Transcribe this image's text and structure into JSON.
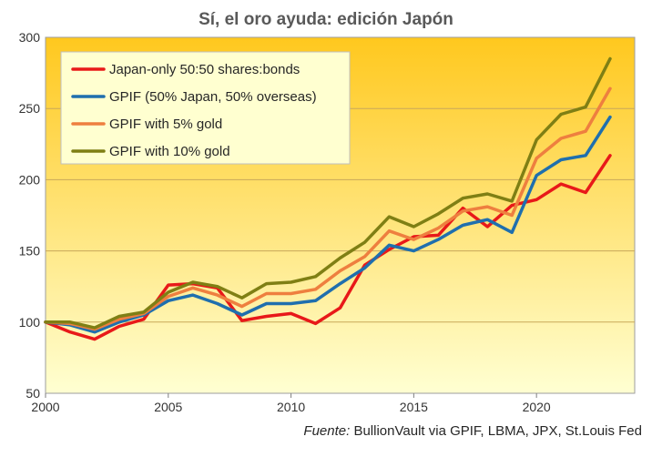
{
  "chart_data": {
    "type": "line",
    "title": "Sí, el oro ayuda: edición Japón",
    "xlabel": "",
    "ylabel": "",
    "xlim": [
      2000,
      2024
    ],
    "ylim": [
      50,
      300
    ],
    "x_ticks": [
      2000,
      2005,
      2010,
      2015,
      2020
    ],
    "y_ticks": [
      50,
      100,
      150,
      200,
      250,
      300
    ],
    "x": [
      2000,
      2001,
      2002,
      2003,
      2004,
      2005,
      2006,
      2007,
      2008,
      2009,
      2010,
      2011,
      2012,
      2013,
      2014,
      2015,
      2016,
      2017,
      2018,
      2019,
      2020,
      2021,
      2022,
      2023
    ],
    "legend_position": "top-left",
    "grid": "horizontal",
    "series": [
      {
        "name": "Japan-only 50:50 shares:bonds",
        "color": "#e81919",
        "values": [
          100,
          93,
          88,
          97,
          102,
          126,
          127,
          124,
          101,
          104,
          106,
          99,
          110,
          140,
          151,
          160,
          161,
          180,
          167,
          182,
          186,
          197,
          191,
          217
        ]
      },
      {
        "name": "GPIF (50% Japan, 50% overseas)",
        "color": "#1f6fae",
        "values": [
          100,
          98,
          93,
          100,
          105,
          115,
          119,
          113,
          105,
          113,
          113,
          115,
          127,
          138,
          154,
          150,
          158,
          168,
          172,
          163,
          203,
          214,
          217,
          244
        ]
      },
      {
        "name": "GPIF with 5% gold",
        "color": "#ee7f3f",
        "values": [
          100,
          99,
          95,
          102,
          106,
          118,
          124,
          119,
          111,
          120,
          120,
          123,
          136,
          146,
          164,
          158,
          166,
          178,
          181,
          175,
          215,
          229,
          234,
          264
        ]
      },
      {
        "name": "GPIF with 10% gold",
        "color": "#7f7f14",
        "values": [
          100,
          100,
          96,
          104,
          107,
          121,
          128,
          125,
          117,
          127,
          128,
          132,
          145,
          156,
          174,
          167,
          176,
          187,
          190,
          185,
          228,
          246,
          251,
          285
        ]
      }
    ],
    "source_label": "Fuente:",
    "source_text": " BullionVault via GPIF, LBMA, JPX, St.Louis Fed"
  },
  "colors": {
    "plot_gradient_top": "#ffc81e",
    "plot_gradient_bottom": "#ffffd2",
    "legend_background": "#ffffd0",
    "gridline": "#c8a85a"
  }
}
